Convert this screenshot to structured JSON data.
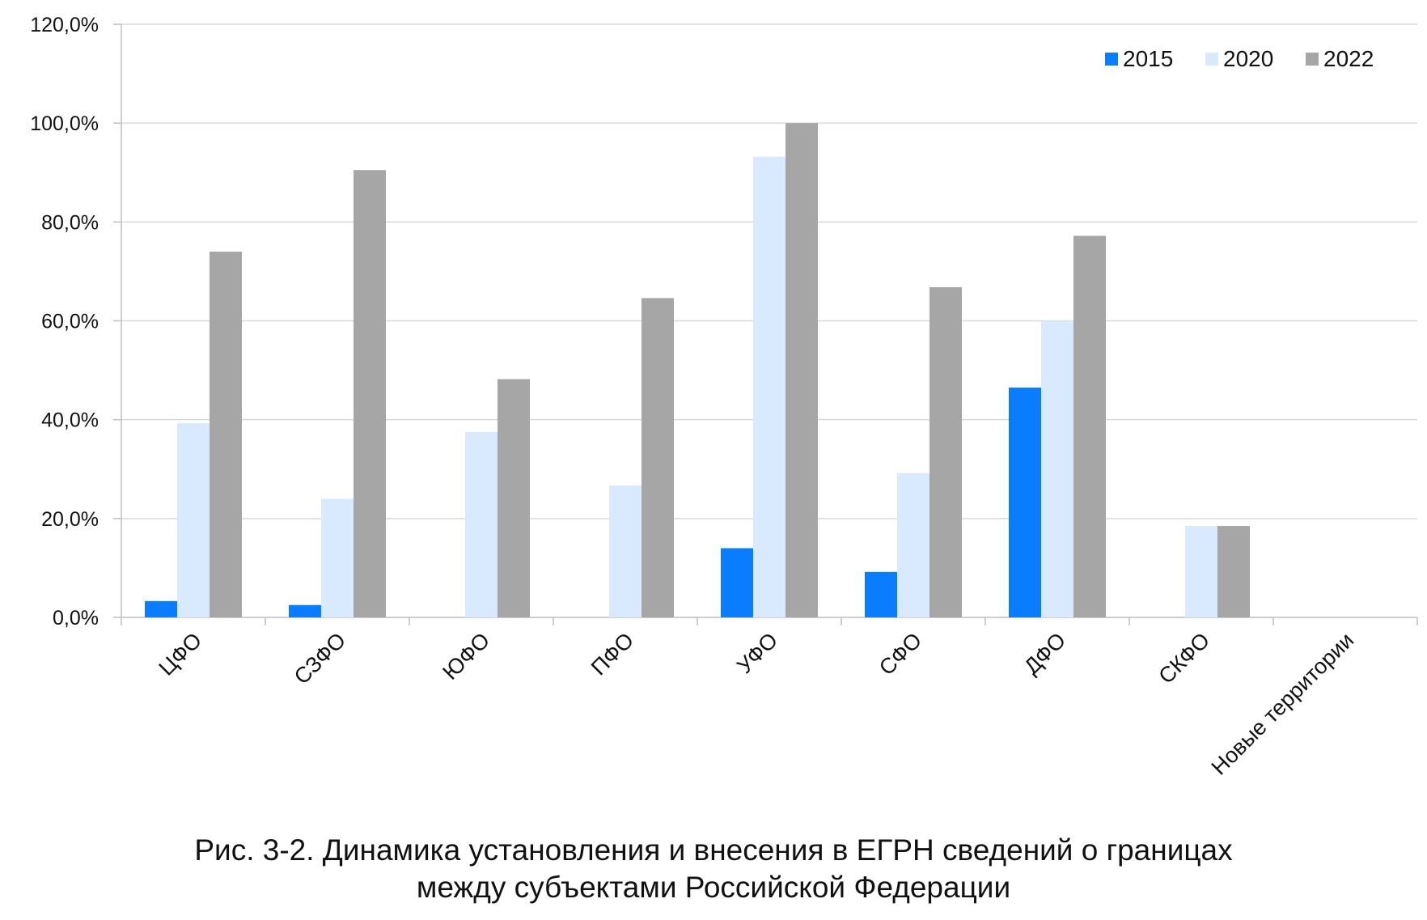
{
  "chart_data": {
    "type": "bar",
    "title": "Рис. 3-2. Динамика установления и внесения в ЕГРН сведений о границах между субъектами Российской Федерации",
    "title_lines": [
      "Рис. 3-2. Динамика установления и внесения в ЕГРН сведений о границах",
      "между субъектами Российской Федерации"
    ],
    "xlabel": "",
    "ylabel": "",
    "ylim": [
      0,
      120
    ],
    "yticks": [
      0,
      20,
      40,
      60,
      80,
      100,
      120
    ],
    "ytick_labels": [
      "0,0%",
      "20,0%",
      "40,0%",
      "60,0%",
      "80,0%",
      "100,0%",
      "120,0%"
    ],
    "grid": true,
    "legend_position": "top-right",
    "categories": [
      "ЦФО",
      "СЗФО",
      "ЮФО",
      "ПФО",
      "УФО",
      "СФО",
      "ДФО",
      "СКФО",
      "Новые территории"
    ],
    "series": [
      {
        "name": "2015",
        "color": "#0A7DFF",
        "values": [
          3.3,
          2.5,
          0,
          0,
          14.0,
          9.2,
          46.5,
          0,
          0
        ]
      },
      {
        "name": "2020",
        "color": "#DAEAFE",
        "values": [
          39.3,
          24.0,
          37.5,
          26.7,
          93.2,
          29.2,
          60.0,
          18.5,
          0
        ]
      },
      {
        "name": "2022",
        "color": "#A6A6A6",
        "values": [
          74.0,
          90.5,
          48.2,
          64.6,
          100.0,
          66.8,
          77.2,
          18.5,
          0
        ]
      }
    ]
  }
}
